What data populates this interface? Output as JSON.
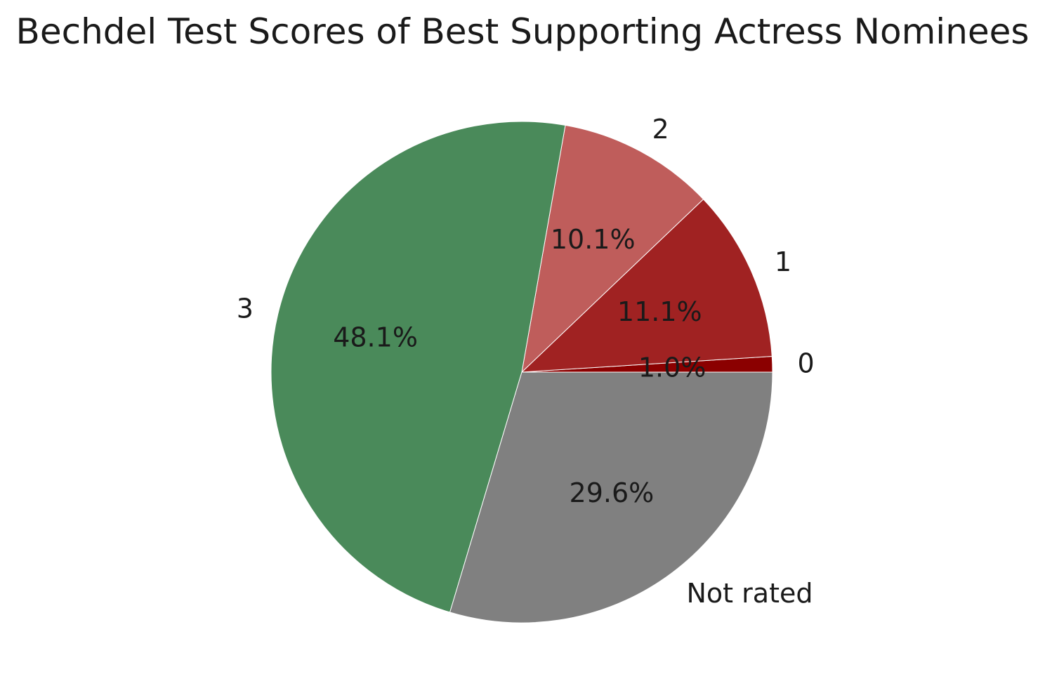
{
  "chart_data": {
    "type": "pie",
    "title": "Bechdel Test Scores of Best Supporting Actress Nominees",
    "categories": [
      "0",
      "1",
      "2",
      "3",
      "Not rated"
    ],
    "values": [
      1.0,
      11.1,
      10.1,
      48.1,
      29.6
    ],
    "labels": [
      "1.0%",
      "11.1%",
      "10.1%",
      "48.1%",
      "29.6%"
    ],
    "colors": [
      "#8b0000",
      "#a02222",
      "#bf5d5b",
      "#4a8a5a",
      "#808080"
    ],
    "start_angle_deg": 0,
    "direction": "counterclockwise"
  }
}
